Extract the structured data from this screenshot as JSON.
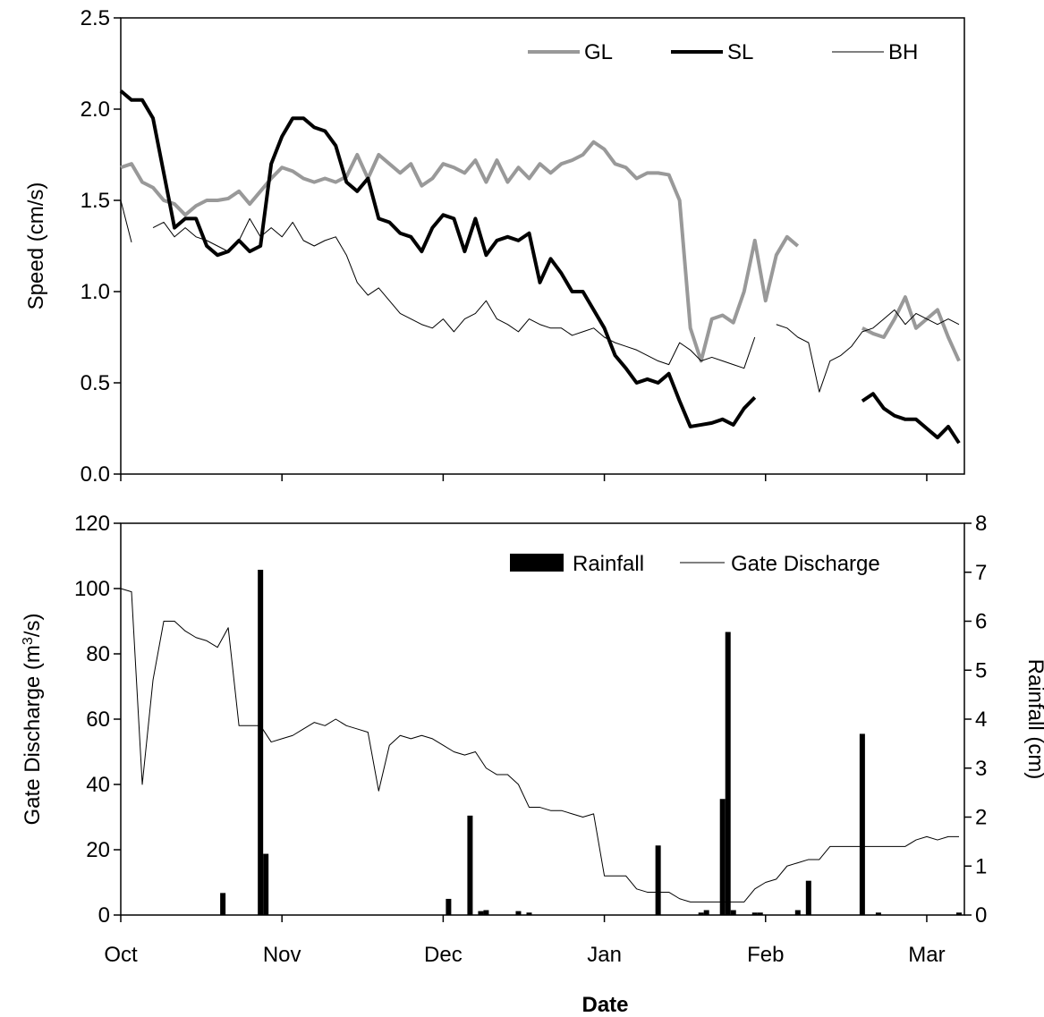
{
  "chart_data": [
    {
      "type": "line",
      "ylabel": "Speed (cm/s)",
      "legend": "upper right",
      "xlim": [
        0,
        157
      ],
      "xticks": [
        0,
        30,
        60,
        90,
        120,
        150
      ],
      "ylim": [
        0,
        2.5
      ],
      "yticks": [
        {
          "value": 0,
          "label": "0.0"
        },
        {
          "value": 0.5,
          "label": "0.5"
        },
        {
          "value": 1,
          "label": "1.0"
        },
        {
          "value": 1.5,
          "label": "1.5"
        },
        {
          "value": 2,
          "label": "2.0"
        },
        {
          "value": 2.5,
          "label": "2.5"
        }
      ],
      "x": [
        0,
        2,
        4,
        6,
        8,
        10,
        12,
        14,
        16,
        18,
        20,
        22,
        24,
        26,
        28,
        30,
        32,
        34,
        36,
        38,
        40,
        42,
        44,
        46,
        48,
        50,
        52,
        54,
        56,
        58,
        60,
        62,
        64,
        66,
        68,
        70,
        72,
        74,
        76,
        78,
        80,
        82,
        84,
        86,
        88,
        90,
        92,
        94,
        96,
        98,
        100,
        102,
        104,
        106,
        108,
        110,
        112,
        114,
        116,
        118,
        120,
        122,
        124,
        126,
        128,
        130,
        132,
        134,
        136,
        138,
        140,
        142,
        144,
        146,
        148,
        150,
        152,
        154,
        156
      ],
      "series": [
        {
          "name": "GL",
          "color": "#999999",
          "width": 4,
          "values": [
            1.68,
            1.7,
            1.6,
            1.57,
            1.5,
            1.48,
            1.42,
            1.47,
            1.5,
            1.5,
            1.51,
            1.55,
            1.48,
            1.55,
            1.62,
            1.68,
            1.66,
            1.62,
            1.6,
            1.62,
            1.6,
            1.63,
            1.75,
            1.62,
            1.75,
            1.7,
            1.65,
            1.7,
            1.58,
            1.62,
            1.7,
            1.68,
            1.65,
            1.72,
            1.6,
            1.72,
            1.6,
            1.68,
            1.62,
            1.7,
            1.65,
            1.7,
            1.72,
            1.75,
            1.82,
            1.78,
            1.7,
            1.68,
            1.62,
            1.65,
            1.65,
            1.64,
            1.5,
            0.8,
            0.62,
            0.85,
            0.87,
            0.83,
            1.0,
            1.28,
            0.95,
            1.2,
            1.3,
            1.25,
            null,
            null,
            null,
            null,
            null,
            0.8,
            0.77,
            0.75,
            0.85,
            0.97,
            0.8,
            0.85,
            0.9,
            0.75,
            0.62
          ]
        },
        {
          "name": "SL",
          "color": "#000000",
          "width": 4,
          "values": [
            2.1,
            2.05,
            2.05,
            1.95,
            1.65,
            1.35,
            1.4,
            1.4,
            1.25,
            1.2,
            1.22,
            1.28,
            1.22,
            1.25,
            1.7,
            1.85,
            1.95,
            1.95,
            1.9,
            1.88,
            1.8,
            1.6,
            1.55,
            1.62,
            1.4,
            1.38,
            1.32,
            1.3,
            1.22,
            1.35,
            1.42,
            1.4,
            1.22,
            1.4,
            1.2,
            1.28,
            1.3,
            1.28,
            1.32,
            1.05,
            1.18,
            1.1,
            1.0,
            1.0,
            0.9,
            0.8,
            0.65,
            0.58,
            0.5,
            0.52,
            0.5,
            0.55,
            0.4,
            0.26,
            0.27,
            0.28,
            0.3,
            0.27,
            0.36,
            0.42,
            null,
            null,
            null,
            null,
            null,
            null,
            null,
            null,
            null,
            0.4,
            0.44,
            0.36,
            0.32,
            0.3,
            0.3,
            0.25,
            0.2,
            0.26,
            0.17
          ]
        },
        {
          "name": "BH",
          "color": "#000000",
          "width": 1,
          "values": [
            1.5,
            1.27,
            null,
            1.35,
            1.38,
            1.3,
            1.35,
            1.3,
            1.28,
            1.25,
            1.22,
            1.28,
            1.4,
            1.3,
            1.35,
            1.3,
            1.38,
            1.28,
            1.25,
            1.28,
            1.3,
            1.2,
            1.05,
            0.98,
            1.02,
            0.95,
            0.88,
            0.85,
            0.82,
            0.8,
            0.85,
            0.78,
            0.85,
            0.88,
            0.95,
            0.85,
            0.82,
            0.78,
            0.85,
            0.82,
            0.8,
            0.8,
            0.76,
            0.78,
            0.8,
            0.75,
            0.72,
            0.7,
            0.68,
            0.65,
            0.62,
            0.6,
            0.72,
            0.68,
            0.62,
            0.64,
            0.62,
            0.6,
            0.58,
            0.75,
            null,
            0.82,
            0.8,
            0.75,
            0.72,
            0.45,
            0.62,
            0.65,
            0.7,
            0.78,
            0.8,
            0.85,
            0.9,
            0.82,
            0.88,
            0.85,
            0.82,
            0.85,
            0.82
          ]
        }
      ]
    },
    {
      "type": "combo",
      "xlabel": "Date",
      "ylabel_parts": [
        "Gate Discharge (m",
        "3",
        "/s)"
      ],
      "y2label": "Rainfall (cm)",
      "legend": "upper right",
      "xlim": [
        0,
        157
      ],
      "xticks": [
        {
          "value": 0,
          "label": "Oct"
        },
        {
          "value": 30,
          "label": "Nov"
        },
        {
          "value": 60,
          "label": "Dec"
        },
        {
          "value": 90,
          "label": "Jan"
        },
        {
          "value": 120,
          "label": "Feb"
        },
        {
          "value": 150,
          "label": "Mar"
        }
      ],
      "ylim": [
        0,
        120
      ],
      "yticks": [
        0,
        20,
        40,
        60,
        80,
        100,
        120
      ],
      "y2lim": [
        0,
        8
      ],
      "y2ticks": [
        0,
        1,
        2,
        3,
        4,
        5,
        6,
        7,
        8
      ],
      "x": [
        0,
        2,
        4,
        6,
        8,
        10,
        12,
        14,
        16,
        18,
        20,
        22,
        24,
        26,
        28,
        30,
        32,
        34,
        36,
        38,
        40,
        42,
        44,
        46,
        48,
        50,
        52,
        54,
        56,
        58,
        60,
        62,
        64,
        66,
        68,
        70,
        72,
        74,
        76,
        78,
        80,
        82,
        84,
        86,
        88,
        90,
        92,
        94,
        96,
        98,
        100,
        102,
        104,
        106,
        108,
        110,
        112,
        114,
        116,
        118,
        120,
        122,
        124,
        126,
        128,
        130,
        132,
        134,
        136,
        138,
        140,
        142,
        144,
        146,
        148,
        150,
        152,
        154,
        156
      ],
      "series": [
        {
          "name": "Rainfall",
          "type": "bar",
          "axis": "y2",
          "color": "#000000",
          "x": [
            19,
            26,
            27,
            61,
            65,
            67,
            68,
            74,
            76,
            100,
            108,
            109,
            112,
            113,
            114,
            118,
            119,
            126,
            128,
            138,
            141,
            156
          ],
          "values": [
            0.45,
            7.05,
            1.25,
            0.33,
            2.03,
            0.08,
            0.1,
            0.08,
            0.05,
            1.42,
            0.05,
            0.1,
            2.37,
            5.78,
            0.1,
            0.05,
            0.05,
            0.1,
            0.7,
            3.7,
            0.05,
            0.05
          ]
        },
        {
          "name": "Gate Discharge",
          "type": "line",
          "color": "#000000",
          "width": 1,
          "values": [
            100,
            99,
            40,
            72,
            90,
            90,
            87,
            85,
            84,
            82,
            88,
            58,
            58,
            58,
            53,
            54,
            55,
            57,
            59,
            58,
            60,
            58,
            57,
            56,
            38,
            52,
            55,
            54,
            55,
            54,
            52,
            50,
            49,
            50,
            45,
            43,
            43,
            40,
            33,
            33,
            32,
            32,
            31,
            30,
            31,
            12,
            12,
            12,
            8,
            7,
            7,
            7,
            5,
            4,
            4,
            4,
            4,
            4,
            4,
            8,
            10,
            11,
            15,
            16,
            17,
            17,
            21,
            21,
            21,
            21,
            21,
            21,
            21,
            21,
            23,
            24,
            23,
            24,
            24
          ]
        }
      ]
    }
  ]
}
